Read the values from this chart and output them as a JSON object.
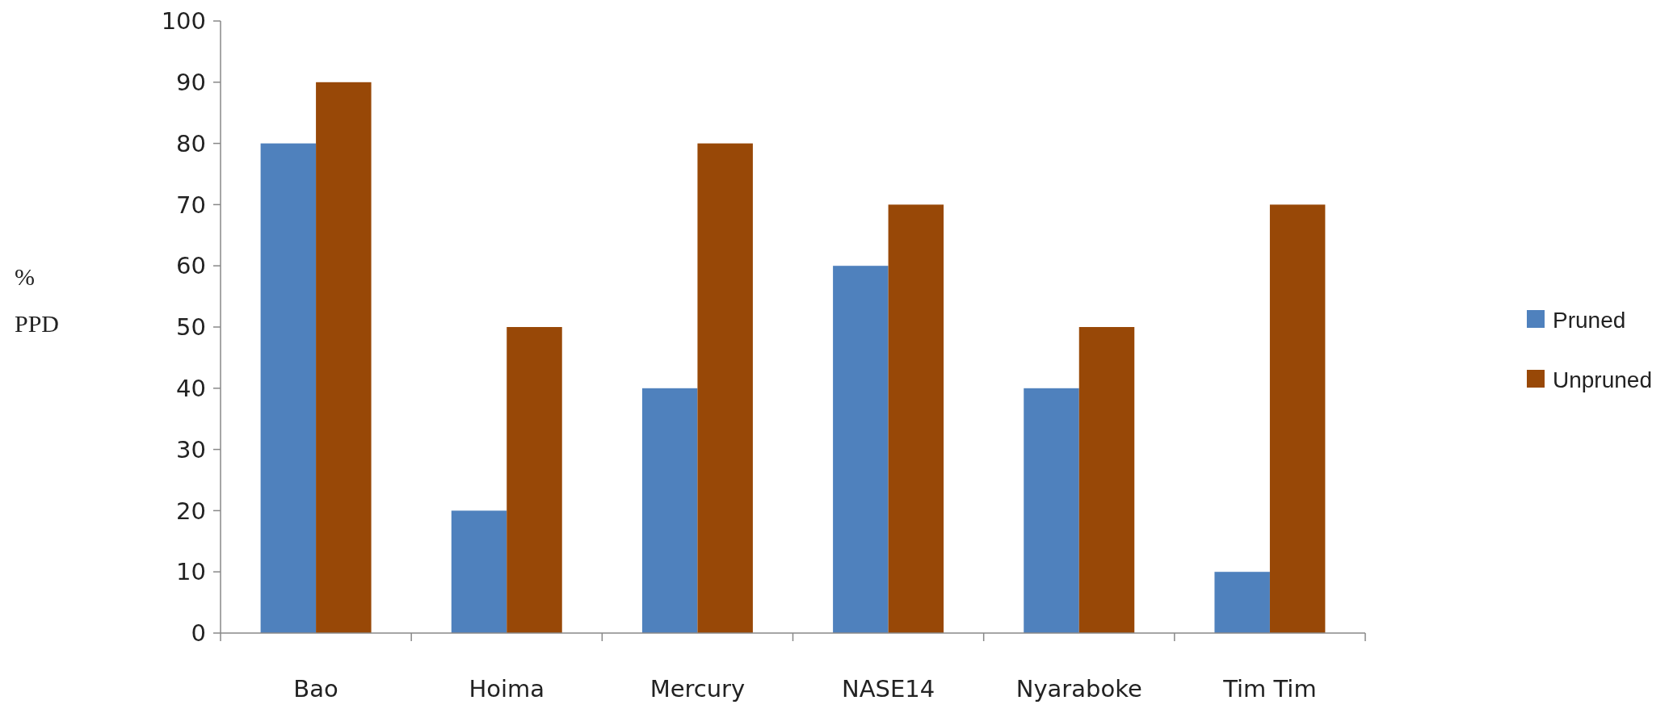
{
  "chart_data": {
    "type": "bar",
    "ylabel": "% PPD",
    "categories": [
      "Bao",
      "Hoima",
      "Mercury",
      "NASE14",
      "Nyaraboke",
      "Tim Tim"
    ],
    "series": [
      {
        "name": "Pruned",
        "color": "#4f81bd",
        "values": [
          80,
          20,
          40,
          60,
          40,
          10
        ]
      },
      {
        "name": "Unpruned",
        "color": "#984807",
        "values": [
          90,
          50,
          80,
          70,
          50,
          70
        ]
      }
    ],
    "ylim": [
      0,
      100
    ],
    "yticks": [
      0,
      10,
      20,
      30,
      40,
      50,
      60,
      70,
      80,
      90,
      100
    ],
    "grid": false,
    "legend": "right"
  }
}
